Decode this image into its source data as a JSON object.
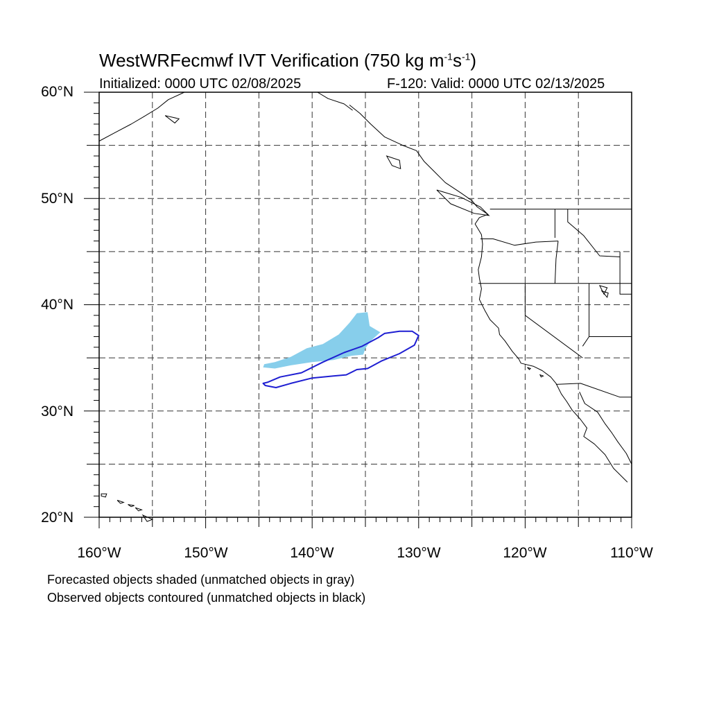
{
  "title": {
    "prefix": "WestWRFecmwf IVT Verification (750 kg m",
    "exp1": "-1",
    "mid": "s",
    "exp2": "-1",
    "suffix": ")"
  },
  "init_text": "Initialized: 0000 UTC 02/08/2025",
  "valid_text": "F-120: Valid: 0000 UTC 02/13/2025",
  "lat_labels": [
    "60°N",
    "50°N",
    "40°N",
    "30°N",
    "20°N"
  ],
  "lon_labels": [
    "160°W",
    "150°W",
    "140°W",
    "130°W",
    "120°W",
    "110°W"
  ],
  "notes": [
    "Forecasted objects shaded (unmatched objects in gray)",
    "Observed objects contoured (unmatched objects in black)"
  ],
  "map_extent": {
    "lon": [
      -160,
      -110
    ],
    "lat": [
      20,
      60
    ]
  },
  "colors": {
    "forecast_fill": "#87ceeb",
    "observed_contour": "#1e1ed2",
    "coast": "#000000",
    "grid": "#333333"
  },
  "forecast_object": [
    [
      -144.5,
      34.4
    ],
    [
      -143.5,
      34.6
    ],
    [
      -142,
      35.1
    ],
    [
      -140.5,
      35.9
    ],
    [
      -139,
      36.3
    ],
    [
      -137.5,
      37.2
    ],
    [
      -136.5,
      38.3
    ],
    [
      -135.8,
      39.2
    ],
    [
      -134.8,
      39.3
    ],
    [
      -134.6,
      38.0
    ],
    [
      -133.6,
      37.4
    ],
    [
      -134.5,
      36.6
    ],
    [
      -135,
      35.9
    ],
    [
      -135.2,
      35.3
    ],
    [
      -136.3,
      35.2
    ],
    [
      -138,
      34.8
    ],
    [
      -140,
      34.6
    ],
    [
      -142,
      34.3
    ],
    [
      -143.5,
      34.0
    ],
    [
      -144.6,
      34.1
    ]
  ],
  "observed_object": [
    [
      -144.2,
      32.7
    ],
    [
      -143,
      33.2
    ],
    [
      -141,
      33.6
    ],
    [
      -139,
      34.6
    ],
    [
      -137,
      35.5
    ],
    [
      -135.3,
      36.1
    ],
    [
      -133.8,
      36.9
    ],
    [
      -133.2,
      37.3
    ],
    [
      -131.8,
      37.5
    ],
    [
      -130.6,
      37.5
    ],
    [
      -130.0,
      37.1
    ],
    [
      -130.4,
      36.2
    ],
    [
      -131.8,
      35.4
    ],
    [
      -133.5,
      34.7
    ],
    [
      -134.8,
      34.0
    ],
    [
      -135.8,
      33.9
    ],
    [
      -136.8,
      33.4
    ],
    [
      -138,
      33.3
    ],
    [
      -140,
      33.1
    ],
    [
      -142,
      32.6
    ],
    [
      -143.4,
      32.2
    ],
    [
      -144.4,
      32.4
    ],
    [
      -144.6,
      32.6
    ]
  ],
  "coastline": [
    [
      -136.5,
      58.8
    ],
    [
      -135.5,
      58.0
    ],
    [
      -134.5,
      57.0
    ],
    [
      -133.2,
      55.8
    ],
    [
      -131.5,
      55.0
    ],
    [
      -130.2,
      54.5
    ],
    [
      -129.5,
      53.5
    ],
    [
      -128.5,
      52.5
    ],
    [
      -127.5,
      51.5
    ],
    [
      -126,
      50.5
    ],
    [
      -125,
      49.8
    ],
    [
      -124.5,
      49.2
    ],
    [
      -123.5,
      48.5
    ],
    [
      -124.3,
      48.2
    ],
    [
      -124.7,
      47.6
    ],
    [
      -124.1,
      46.6
    ],
    [
      -124,
      45.7
    ],
    [
      -124.1,
      44.5
    ],
    [
      -124.4,
      43.3
    ],
    [
      -124.3,
      42.5
    ],
    [
      -124.1,
      41.5
    ],
    [
      -124.3,
      40.5
    ],
    [
      -123.8,
      39.5
    ],
    [
      -123.3,
      38.6
    ],
    [
      -122.5,
      37.8
    ],
    [
      -122.4,
      37.2
    ],
    [
      -121.9,
      36.6
    ],
    [
      -121.2,
      35.6
    ],
    [
      -120.6,
      34.9
    ],
    [
      -120.4,
      34.5
    ],
    [
      -119.2,
      34.2
    ],
    [
      -118.4,
      33.8
    ],
    [
      -117.6,
      33.2
    ],
    [
      -117.1,
      32.6
    ],
    [
      -116.6,
      31.6
    ],
    [
      -116.1,
      30.9
    ],
    [
      -115.6,
      30.1
    ],
    [
      -114.8,
      29.2
    ],
    [
      -114.2,
      28.4
    ],
    [
      -114.5,
      27.6
    ],
    [
      -113.5,
      26.9
    ],
    [
      -112.5,
      25.9
    ],
    [
      -111.7,
      24.6
    ],
    [
      -110.4,
      23.3
    ]
  ],
  "gulf_coast": [
    [
      -114.9,
      31.8
    ],
    [
      -114.4,
      30.7
    ],
    [
      -113.2,
      29.9
    ],
    [
      -112.5,
      28.8
    ],
    [
      -111.9,
      28.0
    ],
    [
      -111.3,
      27.1
    ],
    [
      -110.5,
      26.0
    ],
    [
      -110.0,
      25.0
    ]
  ],
  "alaska_coast": [
    [
      -160,
      55.4
    ],
    [
      -158.5,
      56.2
    ],
    [
      -157,
      57.0
    ],
    [
      -155.8,
      57.7
    ],
    [
      -154.5,
      58.5
    ],
    [
      -153.5,
      59.3
    ],
    [
      -152,
      60.0
    ]
  ],
  "alaska_pan": [
    [
      -139.5,
      60.0
    ],
    [
      -138.5,
      59.4
    ],
    [
      -137,
      58.9
    ],
    [
      -136.2,
      58.3
    ]
  ],
  "borders": [
    [
      [
        -123.3,
        49.0
      ],
      [
        -110,
        49.0
      ]
    ],
    [
      [
        -124.4,
        42.0
      ],
      [
        -110,
        42.0
      ]
    ],
    [
      [
        -124.2,
        46.2
      ],
      [
        -123,
        46.2
      ],
      [
        -121,
        45.6
      ],
      [
        -119,
        45.9
      ],
      [
        -116.9,
        46.0
      ]
    ],
    [
      [
        -116.9,
        46.0
      ],
      [
        -117.1,
        44.3
      ],
      [
        -117.2,
        42.0
      ]
    ],
    [
      [
        -117.2,
        49.0
      ],
      [
        -117.2,
        46.3
      ]
    ],
    [
      [
        -116.0,
        49.0
      ],
      [
        -116.0,
        47.8
      ],
      [
        -114.5,
        46.5
      ],
      [
        -113,
        44.6
      ],
      [
        -111.1,
        44.5
      ]
    ],
    [
      [
        -120.0,
        42.0
      ],
      [
        -120.0,
        39.0
      ],
      [
        -114.6,
        35.0
      ]
    ],
    [
      [
        -114.0,
        42.0
      ],
      [
        -114.0,
        37.0
      ],
      [
        -114.6,
        36.1
      ]
    ],
    [
      [
        -114.0,
        37.0
      ],
      [
        -110,
        37.0
      ]
    ],
    [
      [
        -111.1,
        45.0
      ],
      [
        -111.1,
        41.0
      ],
      [
        -110,
        41.0
      ]
    ],
    [
      [
        -117.1,
        32.5
      ],
      [
        -114.8,
        32.6
      ],
      [
        -111.1,
        31.3
      ],
      [
        -110,
        31.3
      ]
    ]
  ],
  "islands": [
    [
      [
        -159.8,
        22.2
      ],
      [
        -159.3,
        22.2
      ],
      [
        -159.4,
        21.9
      ],
      [
        -159.8,
        22.0
      ],
      [
        -159.8,
        22.2
      ]
    ],
    [
      [
        -158.3,
        21.6
      ],
      [
        -157.7,
        21.4
      ],
      [
        -158.0,
        21.3
      ],
      [
        -158.3,
        21.6
      ]
    ],
    [
      [
        -157.3,
        21.2
      ],
      [
        -156.7,
        21.1
      ],
      [
        -157.0,
        21.0
      ],
      [
        -157.3,
        21.2
      ]
    ],
    [
      [
        -156.6,
        20.9
      ],
      [
        -156.0,
        20.7
      ],
      [
        -156.3,
        20.6
      ],
      [
        -156.6,
        20.9
      ]
    ],
    [
      [
        -155.9,
        20.2
      ],
      [
        -155.0,
        19.8
      ],
      [
        -155.5,
        19.6
      ],
      [
        -155.9,
        20.2
      ]
    ],
    [
      [
        -153.8,
        57.8
      ],
      [
        -152.5,
        57.5
      ],
      [
        -152.9,
        57.1
      ],
      [
        -153.8,
        57.8
      ]
    ],
    [
      [
        -133.0,
        54.0
      ],
      [
        -131.8,
        53.6
      ],
      [
        -131.7,
        52.8
      ],
      [
        -132.5,
        53.1
      ],
      [
        -133.0,
        54.0
      ]
    ],
    [
      [
        -128.3,
        50.8
      ],
      [
        -126.0,
        50.1
      ],
      [
        -124.2,
        49.2
      ],
      [
        -123.4,
        48.4
      ],
      [
        -124.8,
        48.6
      ],
      [
        -127.0,
        49.5
      ],
      [
        -128.3,
        50.8
      ]
    ],
    [
      [
        -118.6,
        33.4
      ],
      [
        -118.3,
        33.3
      ],
      [
        -118.5,
        33.2
      ],
      [
        -118.6,
        33.4
      ]
    ],
    [
      [
        -119.8,
        34.1
      ],
      [
        -119.5,
        34.0
      ],
      [
        -119.6,
        33.9
      ],
      [
        -119.8,
        34.1
      ]
    ],
    [
      [
        -112.8,
        41.3
      ],
      [
        -112.2,
        41.1
      ],
      [
        -112.3,
        40.7
      ],
      [
        -112.8,
        41.3
      ]
    ]
  ],
  "lakes": [
    [
      [
        -113.0,
        41.8
      ],
      [
        -112.3,
        41.6
      ],
      [
        -112.6,
        41.0
      ],
      [
        -113.0,
        41.8
      ]
    ]
  ]
}
